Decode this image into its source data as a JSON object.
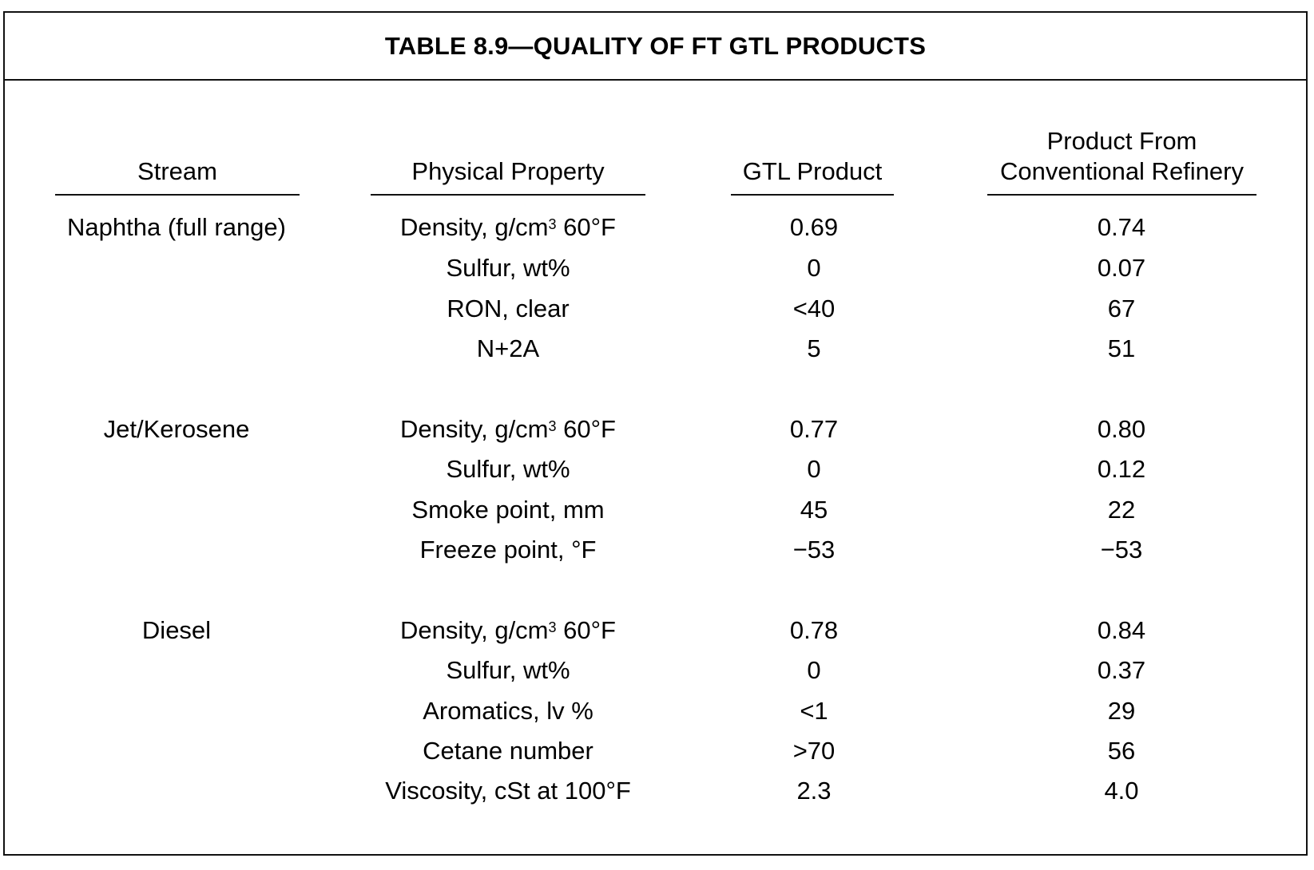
{
  "table": {
    "title": "TABLE 8.9—QUALITY OF FT GTL PRODUCTS",
    "columns": [
      {
        "label_line1": "",
        "label_line2": "Stream"
      },
      {
        "label_line1": "",
        "label_line2": "Physical Property"
      },
      {
        "label_line1": "",
        "label_line2": "GTL Product"
      },
      {
        "label_line1": "Product From",
        "label_line2": "Conventional Refinery"
      }
    ],
    "groups": [
      {
        "stream": "Naphtha (full range)",
        "rows": [
          {
            "property": "Density, g/cm",
            "sup": "3",
            "property_suffix": " 60°F",
            "gtl": "0.69",
            "refinery": "0.74"
          },
          {
            "property": "Sulfur, wt%",
            "sup": "",
            "property_suffix": "",
            "gtl": "0",
            "refinery": "0.07"
          },
          {
            "property": "RON, clear",
            "sup": "",
            "property_suffix": "",
            "gtl": "<40",
            "refinery": "67"
          },
          {
            "property": "N+2A",
            "sup": "",
            "property_suffix": "",
            "gtl": "5",
            "refinery": "51"
          }
        ]
      },
      {
        "stream": "Jet/Kerosene",
        "rows": [
          {
            "property": "Density, g/cm",
            "sup": "3",
            "property_suffix": " 60°F",
            "gtl": "0.77",
            "refinery": "0.80"
          },
          {
            "property": "Sulfur, wt%",
            "sup": "",
            "property_suffix": "",
            "gtl": "0",
            "refinery": "0.12"
          },
          {
            "property": "Smoke point, mm",
            "sup": "",
            "property_suffix": "",
            "gtl": "45",
            "refinery": "22"
          },
          {
            "property": "Freeze point, °F",
            "sup": "",
            "property_suffix": "",
            "gtl": "−53",
            "refinery": "−53"
          }
        ]
      },
      {
        "stream": "Diesel",
        "rows": [
          {
            "property": "Density, g/cm",
            "sup": "3",
            "property_suffix": " 60°F",
            "gtl": "0.78",
            "refinery": "0.84"
          },
          {
            "property": "Sulfur, wt%",
            "sup": "",
            "property_suffix": "",
            "gtl": "0",
            "refinery": "0.37"
          },
          {
            "property": "Aromatics, lv %",
            "sup": "",
            "property_suffix": "",
            "gtl": "<1",
            "refinery": "29"
          },
          {
            "property": "Cetane number",
            "sup": "",
            "property_suffix": "",
            "gtl": ">70",
            "refinery": "56"
          },
          {
            "property": "Viscosity, cSt at 100°F",
            "sup": "",
            "property_suffix": "",
            "gtl": "2.3",
            "refinery": "4.0"
          }
        ]
      }
    ]
  }
}
